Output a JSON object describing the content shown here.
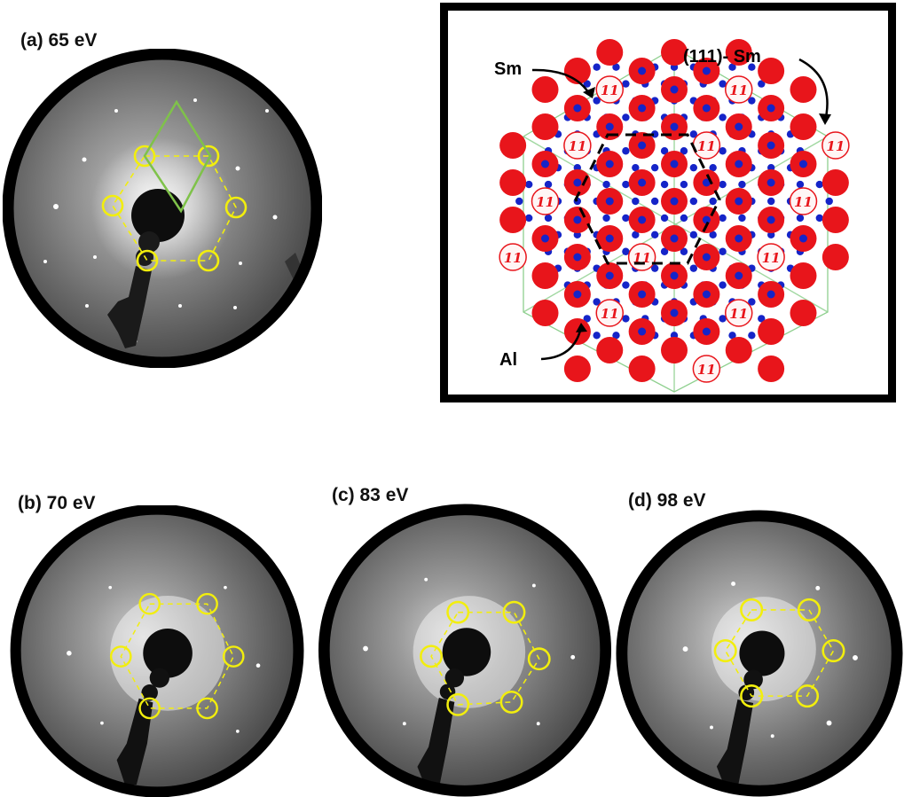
{
  "panels": {
    "a": {
      "label": "(a) 65 eV"
    },
    "b": {
      "label": "(b) 70 eV"
    },
    "c": {
      "label": "(c) 83 eV"
    },
    "d": {
      "label": "(d) 98 eV"
    }
  },
  "lattice": {
    "sm_label": "Sm",
    "sm111_label": "(111)- Sm",
    "al_label": "Al",
    "site_glyph": "11"
  },
  "colors": {
    "sm_atom": "#e8151b",
    "al_atom": "#1524c8",
    "spot_circle": "#f2ee0d",
    "unit_cell": "#7fc24a",
    "lattice_lines": "#8fd08f"
  }
}
